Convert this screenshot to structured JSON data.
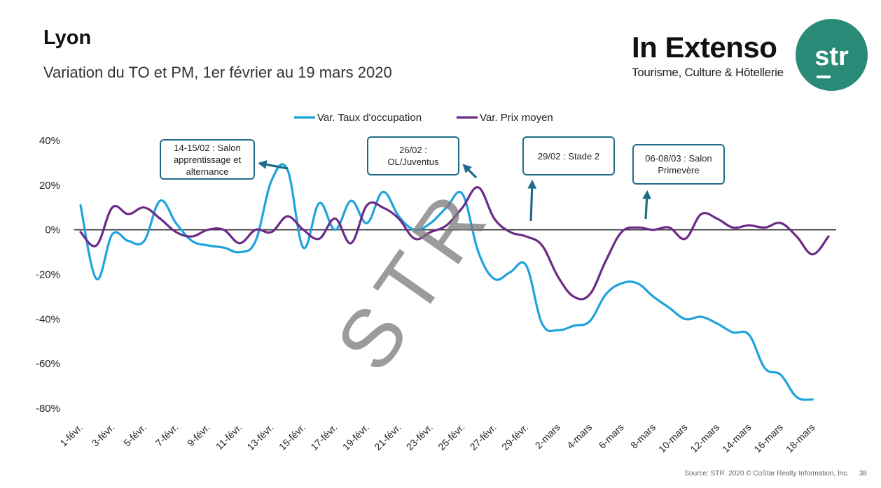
{
  "header": {
    "title": "Lyon",
    "subtitle": "Variation du TO et PM, 1er février au 19 mars 2020"
  },
  "logo": {
    "name": "In Extenso",
    "tagline": "Tourisme, Culture & Hôtellerie",
    "badge": "str"
  },
  "watermark": "STR",
  "footer": {
    "source": "Source: STR. 2020 © CoStar Realty Information, Inc.",
    "page": "38"
  },
  "colors": {
    "occupancy": "#1fa3dc",
    "price": "#6b2a86",
    "callout_border": "#1f6b8a",
    "arrow": "#1f6b8a",
    "logo_green": "#2a8a78"
  },
  "callouts": [
    {
      "text": "14-15/02 : Salon apprentissage et alternance"
    },
    {
      "text": "26/02 : OL/Juventus"
    },
    {
      "text": "29/02 : Stade 2"
    },
    {
      "text": "06-08/03 : Salon Primevère"
    }
  ],
  "chart_data": {
    "type": "line",
    "legend_position": "top",
    "ylim": [
      -80,
      40
    ],
    "yticks": [
      40,
      20,
      0,
      -20,
      -40,
      -60,
      -80
    ],
    "ytick_labels": [
      "40%",
      "20%",
      "0%",
      "-20%",
      "-40%",
      "-60%",
      "-80%"
    ],
    "x_labels": [
      "1-févr.",
      "3-févr.",
      "5-févr.",
      "7-févr.",
      "9-févr.",
      "11-févr.",
      "13-févr.",
      "15-févr.",
      "17-févr.",
      "19-févr.",
      "21-févr.",
      "23-févr.",
      "25-févr.",
      "27-févr.",
      "29-févr.",
      "2-mars",
      "4-mars",
      "6-mars",
      "8-mars",
      "10-mars",
      "12-mars",
      "14-mars",
      "16-mars",
      "18-mars"
    ],
    "x_count": 48,
    "series": [
      {
        "name": "Var. Taux d'occupation",
        "values": [
          11,
          -22,
          -2,
          -5,
          -5,
          13,
          3,
          -5,
          -7,
          -8,
          -10,
          -5,
          22,
          27,
          -8,
          12,
          0,
          13,
          3,
          17,
          6,
          0,
          3,
          10,
          16,
          -10,
          -22,
          -19,
          -16,
          -42,
          -45,
          -43,
          -41,
          -29,
          -24,
          -24,
          -30,
          -35,
          -40,
          -39,
          -42,
          -46,
          -47,
          -62,
          -65,
          -75,
          -76,
          null
        ],
        "color": "#1fa3dc"
      },
      {
        "name": "Var. Prix moyen",
        "values": [
          -1,
          -7,
          10,
          7,
          10,
          5,
          -1,
          -3,
          0,
          0,
          -6,
          0,
          -1,
          6,
          0,
          -4,
          5,
          -6,
          11,
          10,
          5,
          -4,
          -1,
          2,
          10,
          19,
          5,
          -1,
          -3,
          -7,
          -21,
          -30,
          -29,
          -14,
          -1,
          1,
          0,
          1,
          -4,
          7,
          5,
          1,
          2,
          1,
          3,
          -3,
          -11,
          -3
        ],
        "color": "#6b2a86"
      }
    ]
  }
}
